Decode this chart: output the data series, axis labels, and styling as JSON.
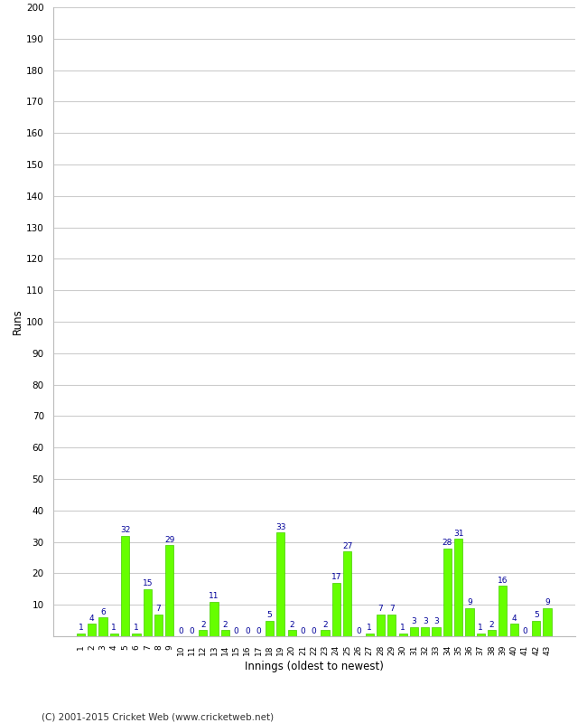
{
  "innings": [
    "1",
    "2",
    "3",
    "4",
    "5",
    "6",
    "7",
    "8",
    "9",
    "10",
    "11",
    "12",
    "13",
    "14",
    "15",
    "16",
    "17",
    "18",
    "19",
    "20",
    "21",
    "22",
    "23",
    "24",
    "25",
    "26",
    "27",
    "28",
    "29",
    "30",
    "31",
    "32",
    "33",
    "34",
    "35",
    "36",
    "37",
    "38",
    "39",
    "40",
    "41",
    "42",
    "43"
  ],
  "runs": [
    1,
    4,
    6,
    1,
    32,
    1,
    15,
    7,
    29,
    0,
    0,
    2,
    11,
    2,
    0,
    0,
    0,
    5,
    33,
    2,
    0,
    0,
    2,
    17,
    27,
    0,
    1,
    7,
    7,
    1,
    3,
    3,
    3,
    28,
    31,
    9,
    1,
    2,
    16,
    4,
    0,
    5,
    9
  ],
  "bar_color": "#66ff00",
  "bar_edge_color": "#44cc00",
  "label_color": "#000099",
  "xlabel": "Innings (oldest to newest)",
  "ylabel": "Runs",
  "ylim": [
    0,
    200
  ],
  "yticks": [
    0,
    10,
    20,
    30,
    40,
    50,
    60,
    70,
    80,
    90,
    100,
    110,
    120,
    130,
    140,
    150,
    160,
    170,
    180,
    190,
    200
  ],
  "bg_color": "#ffffff",
  "grid_color": "#cccccc",
  "footer": "(C) 2001-2015 Cricket Web (www.cricketweb.net)"
}
